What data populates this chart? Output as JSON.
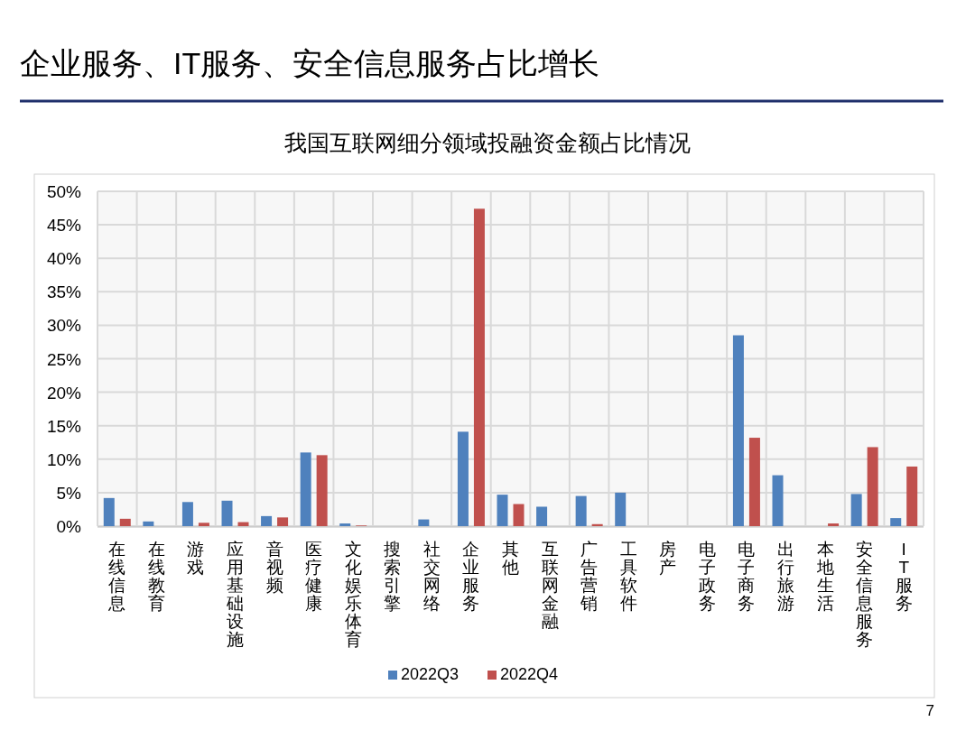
{
  "chart_data": {
    "type": "bar",
    "title": "我国互联网细分领域投融资金额占比情况",
    "annotations": [
      "企业服务、IT服务、安全信息服务占比增长",
      "7"
    ],
    "categories": [
      "在线信息",
      "在线教育",
      "游戏",
      "应用基础设施",
      "音视频",
      "医疗健康",
      "文化娱乐体育",
      "搜索引擎",
      "社交网络",
      "企业服务",
      "其他",
      "互联网金融",
      "广告营销",
      "工具软件",
      "房产",
      "电子政务",
      "电子商务",
      "出行旅游",
      "本地生活",
      "安全信息服务",
      "IT服务"
    ],
    "series": [
      {
        "name": "2022Q3",
        "color": "#4f81bd",
        "values": [
          4.2,
          0.7,
          3.6,
          3.8,
          1.5,
          11.0,
          0.4,
          null,
          1.0,
          14.1,
          4.7,
          2.9,
          4.5,
          5.0,
          null,
          null,
          28.5,
          7.6,
          null,
          4.8,
          1.2
        ]
      },
      {
        "name": "2022Q4",
        "color": "#c0504d",
        "values": [
          1.1,
          null,
          0.5,
          0.6,
          1.3,
          10.6,
          0.1,
          null,
          null,
          47.4,
          3.3,
          null,
          0.3,
          null,
          null,
          null,
          13.2,
          null,
          0.4,
          11.8,
          8.9
        ]
      }
    ],
    "ylim": [
      0,
      50
    ],
    "yticks": [
      {
        "value": 0,
        "label": "0%"
      },
      {
        "value": 5,
        "label": "5%"
      },
      {
        "value": 10,
        "label": "10%"
      },
      {
        "value": 15,
        "label": "15%"
      },
      {
        "value": 20,
        "label": "20%"
      },
      {
        "value": 25,
        "label": "25%"
      },
      {
        "value": 30,
        "label": "30%"
      },
      {
        "value": 35,
        "label": "35%"
      },
      {
        "value": 40,
        "label": "40%"
      },
      {
        "value": 45,
        "label": "45%"
      },
      {
        "value": 50,
        "label": "50%"
      }
    ],
    "grid": true,
    "legend": "bottom"
  }
}
